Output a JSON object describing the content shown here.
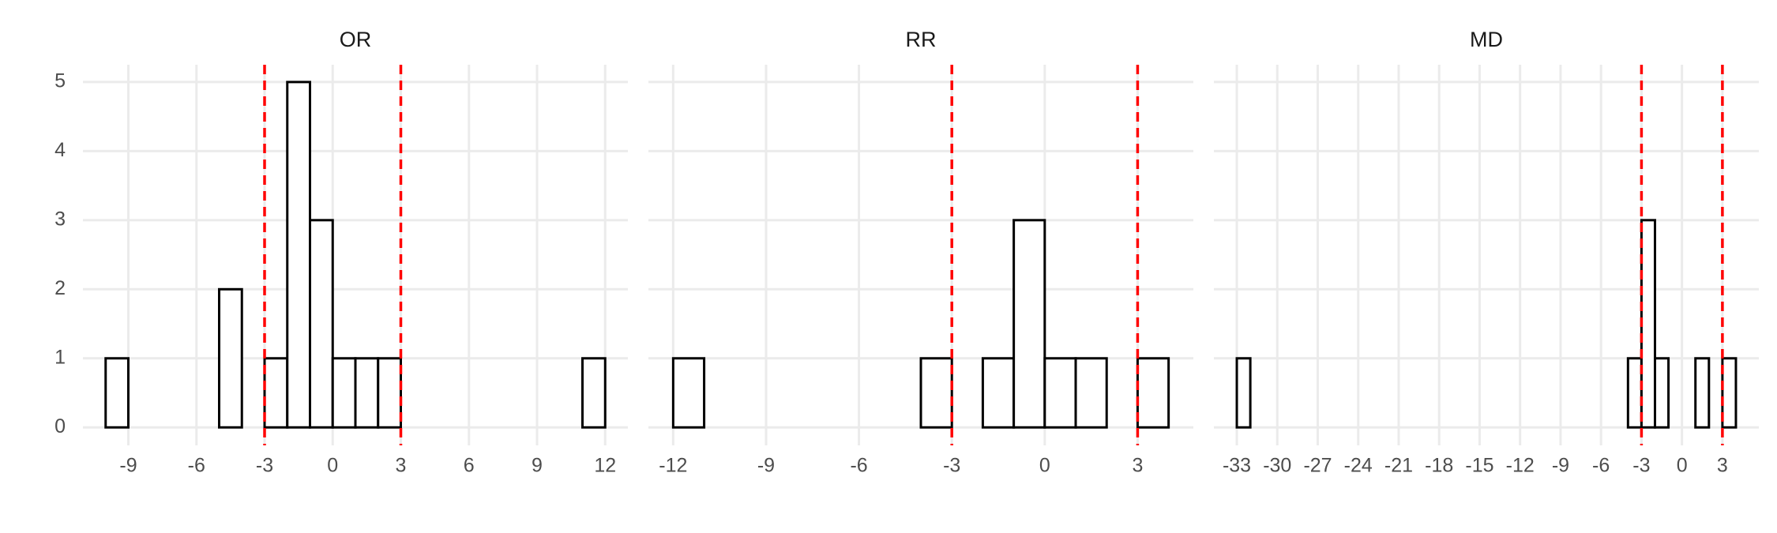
{
  "chart_data": [
    {
      "type": "histogram",
      "title": "OR",
      "bins": [
        -10,
        -9,
        -8,
        -7,
        -6,
        -5,
        -4,
        -3,
        -2,
        -1,
        0,
        1,
        2,
        3,
        4,
        5,
        6,
        7,
        8,
        9,
        10,
        11,
        12
      ],
      "values": [
        1,
        0,
        0,
        0,
        0,
        2,
        0,
        1,
        5,
        3,
        1,
        1,
        1,
        0,
        0,
        0,
        0,
        0,
        0,
        0,
        0,
        1
      ],
      "xlim": [
        -11,
        13
      ],
      "xticks": [
        -9,
        -6,
        -3,
        0,
        3,
        6,
        9,
        12
      ],
      "ylim": [
        -0.26,
        5.25
      ],
      "yticks": [
        0,
        1,
        2,
        3,
        4,
        5
      ],
      "vlines": [
        -3,
        3
      ],
      "fill": "#ffffff",
      "edgecolor": "#000000",
      "vline_color": "#ff0000",
      "grid": true
    },
    {
      "type": "histogram",
      "title": "RR",
      "bins": [
        -12,
        -11,
        -10,
        -9,
        -8,
        -7,
        -6,
        -5,
        -4,
        -3,
        -2,
        -1,
        0,
        1,
        2,
        3,
        4
      ],
      "values": [
        1,
        0,
        0,
        0,
        0,
        0,
        0,
        0,
        1,
        0,
        1,
        3,
        1,
        1,
        0,
        1
      ],
      "xlim": [
        -12.8,
        4.8
      ],
      "xticks": [
        -12,
        -9,
        -6,
        -3,
        0,
        3
      ],
      "ylim": [
        -0.26,
        5.25
      ],
      "yticks": [
        0,
        1,
        2,
        3,
        4,
        5
      ],
      "vlines": [
        -3,
        3
      ],
      "fill": "#ffffff",
      "edgecolor": "#000000",
      "vline_color": "#ff0000",
      "grid": true
    },
    {
      "type": "histogram",
      "title": "MD",
      "bins": [
        -33,
        -32,
        -31,
        -30,
        -29,
        -28,
        -27,
        -26,
        -25,
        -24,
        -23,
        -22,
        -21,
        -20,
        -19,
        -18,
        -17,
        -16,
        -15,
        -14,
        -13,
        -12,
        -11,
        -10,
        -9,
        -8,
        -7,
        -6,
        -5,
        -4,
        -3,
        -2,
        -1,
        0,
        1,
        2,
        3,
        4
      ],
      "values": [
        1,
        0,
        0,
        0,
        0,
        0,
        0,
        0,
        0,
        0,
        0,
        0,
        0,
        0,
        0,
        0,
        0,
        0,
        0,
        0,
        0,
        0,
        0,
        0,
        0,
        0,
        0,
        0,
        0,
        1,
        3,
        1,
        0,
        0,
        1,
        0,
        1
      ],
      "xlim": [
        -34.7,
        5.7
      ],
      "xticks": [
        -33,
        -30,
        -27,
        -24,
        -21,
        -18,
        -15,
        -12,
        -9,
        -6,
        -3,
        0,
        3
      ],
      "ylim": [
        -0.26,
        5.25
      ],
      "yticks": [
        0,
        1,
        2,
        3,
        4,
        5
      ],
      "vlines": [
        -3,
        3
      ],
      "fill": "#ffffff",
      "edgecolor": "#000000",
      "vline_color": "#ff0000",
      "grid": true
    }
  ]
}
